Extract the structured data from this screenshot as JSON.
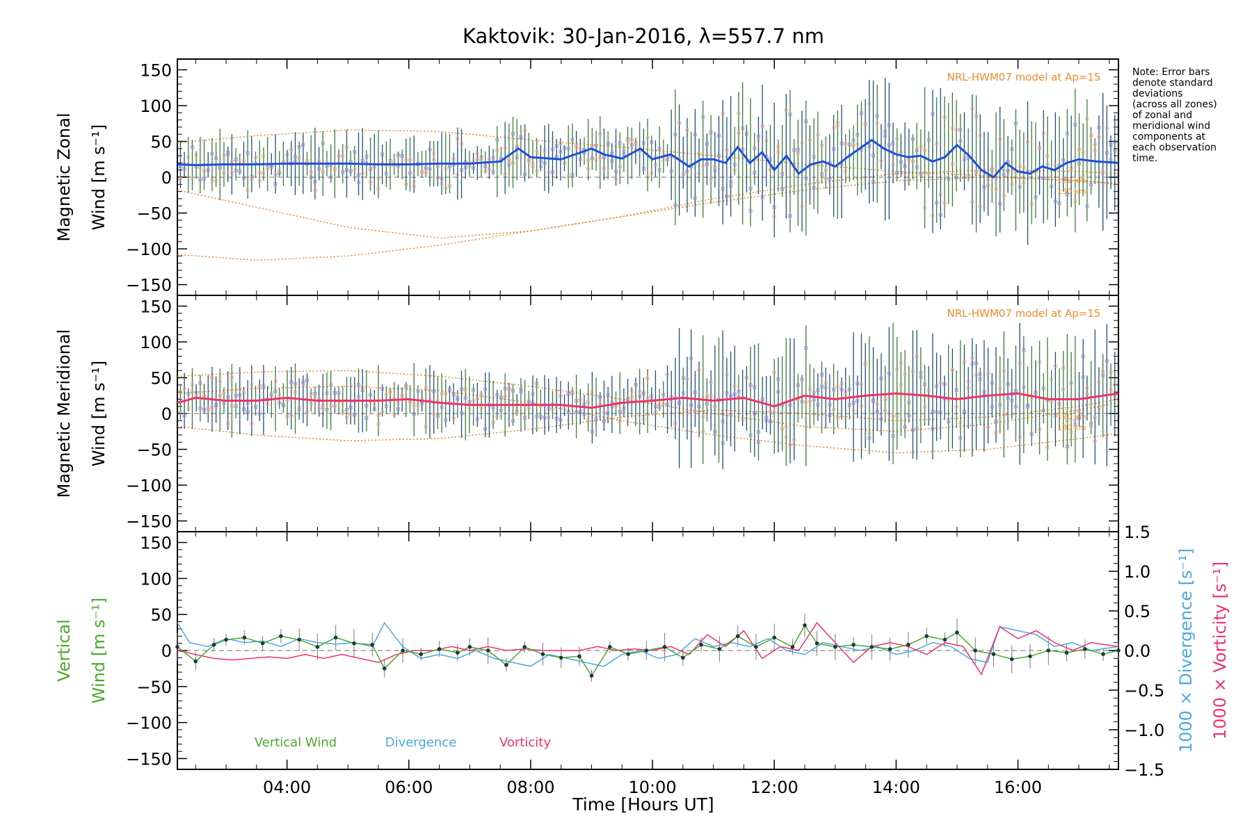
{
  "chart_data": [
    {
      "type": "line",
      "title": "Kaktovik: 30-Jan-2016, λ=557.7 nm",
      "ylabel": [
        "Magnetic Zonal",
        "Wind [m s⁻¹]"
      ],
      "ylim": [
        -165,
        165
      ],
      "xlim": [
        2.2,
        17.65
      ],
      "yticks": [
        "150",
        "100",
        "50",
        "0",
        "−50",
        "−100",
        "−150"
      ],
      "model_label": "NRL-HWM07 model at Ap=15",
      "model_curve_labels": [
        "120 km",
        "130 km"
      ],
      "series": [
        {
          "name": "",
          "color": "#1e4fd8",
          "x": [
            2.2,
            2.5,
            3.0,
            3.5,
            4.0,
            4.5,
            5.0,
            5.5,
            6.0,
            6.5,
            7.0,
            7.5,
            7.8,
            8.0,
            8.5,
            9.0,
            9.2,
            9.5,
            9.8,
            10.0,
            10.3,
            10.6,
            10.8,
            11.0,
            11.2,
            11.4,
            11.6,
            11.8,
            12.0,
            12.2,
            12.4,
            12.6,
            12.8,
            13.0,
            13.2,
            13.4,
            13.6,
            13.8,
            14.0,
            14.2,
            14.4,
            14.6,
            14.8,
            15.0,
            15.2,
            15.4,
            15.6,
            15.8,
            16.0,
            16.2,
            16.4,
            16.6,
            16.8,
            17.0,
            17.3,
            17.65
          ],
          "y": [
            18,
            17,
            18,
            18,
            19,
            19,
            19,
            18,
            18,
            19,
            19,
            22,
            40,
            28,
            25,
            40,
            32,
            26,
            40,
            25,
            32,
            15,
            25,
            25,
            20,
            42,
            20,
            35,
            10,
            30,
            5,
            18,
            22,
            15,
            28,
            40,
            52,
            40,
            32,
            28,
            30,
            22,
            28,
            45,
            30,
            10,
            0,
            20,
            8,
            5,
            15,
            10,
            20,
            25,
            22,
            20
          ]
        }
      ]
    },
    {
      "type": "line",
      "ylabel": [
        "Magnetic Meridional",
        "Wind [m s⁻¹]"
      ],
      "ylim": [
        -165,
        165
      ],
      "xlim": [
        2.2,
        17.65
      ],
      "yticks": [
        "150",
        "100",
        "50",
        "0",
        "−50",
        "−100",
        "−150"
      ],
      "model_label": "NRL-HWM07 model at Ap=15",
      "model_curve_labels": [
        "120 km",
        "130 km"
      ],
      "series": [
        {
          "name": "",
          "color": "#f0306a",
          "x": [
            2.2,
            2.5,
            3.0,
            3.5,
            4.0,
            4.5,
            5.0,
            5.5,
            6.0,
            6.5,
            7.0,
            7.5,
            8.0,
            8.5,
            9.0,
            9.5,
            10.0,
            10.5,
            11.0,
            11.5,
            12.0,
            12.5,
            13.0,
            13.5,
            14.0,
            14.5,
            15.0,
            15.5,
            16.0,
            16.5,
            17.0,
            17.65
          ],
          "y": [
            15,
            22,
            18,
            18,
            22,
            18,
            18,
            18,
            20,
            15,
            12,
            12,
            12,
            12,
            8,
            15,
            18,
            22,
            18,
            22,
            10,
            25,
            20,
            25,
            28,
            25,
            20,
            25,
            28,
            20,
            20,
            28
          ]
        }
      ]
    },
    {
      "type": "line",
      "ylabel": [
        "Vertical",
        "Wind [m s⁻¹]"
      ],
      "ylabel_right": [
        "1000 × Divergence [s⁻¹]",
        "1000 × Vorticity [s⁻¹]"
      ],
      "ylim": [
        -165,
        165
      ],
      "ylim_right": [
        -1.5,
        1.5
      ],
      "xlim": [
        2.2,
        17.65
      ],
      "yticks": [
        "150",
        "100",
        "50",
        "0",
        "−50",
        "−100",
        "−150"
      ],
      "yticks_right": [
        "1.5",
        "1.0",
        "0.5",
        "0.0",
        "−0.5",
        "−1.0",
        "−1.5"
      ],
      "xticks": [
        "04:00",
        "06:00",
        "08:00",
        "10:00",
        "12:00",
        "14:00",
        "16:00"
      ],
      "xlabel": "Time [Hours UT]",
      "legend": [
        "Vertical Wind",
        "Divergence",
        "Vorticity"
      ],
      "series": [
        {
          "name": "Vertical Wind",
          "color": "#4aa82c",
          "x": [
            2.2,
            2.5,
            2.8,
            3.0,
            3.3,
            3.6,
            3.9,
            4.2,
            4.5,
            4.8,
            5.1,
            5.4,
            5.6,
            5.9,
            6.2,
            6.5,
            6.8,
            7.0,
            7.3,
            7.6,
            7.9,
            8.2,
            8.5,
            8.8,
            9.0,
            9.3,
            9.6,
            9.9,
            10.2,
            10.5,
            10.8,
            11.1,
            11.4,
            11.7,
            12.0,
            12.3,
            12.5,
            12.7,
            13.0,
            13.3,
            13.6,
            13.9,
            14.2,
            14.5,
            14.8,
            15.0,
            15.3,
            15.6,
            15.9,
            16.2,
            16.5,
            16.8,
            17.1,
            17.4,
            17.65
          ],
          "y": [
            5,
            -15,
            8,
            15,
            18,
            10,
            20,
            15,
            5,
            18,
            10,
            8,
            -25,
            0,
            -5,
            2,
            -3,
            5,
            0,
            -20,
            5,
            -5,
            -10,
            -8,
            -35,
            5,
            -5,
            0,
            5,
            -10,
            8,
            2,
            20,
            5,
            18,
            5,
            35,
            10,
            5,
            8,
            5,
            2,
            8,
            20,
            15,
            25,
            0,
            -5,
            -12,
            -8,
            0,
            -3,
            2,
            -5,
            0
          ]
        },
        {
          "name": "Divergence",
          "color": "#4aa8e0",
          "x": [
            2.2,
            2.4,
            2.7,
            3.0,
            3.3,
            3.6,
            3.9,
            4.2,
            4.5,
            4.8,
            5.1,
            5.4,
            5.6,
            5.9,
            6.2,
            6.5,
            6.8,
            7.1,
            7.4,
            7.7,
            8.0,
            8.3,
            8.6,
            8.9,
            9.2,
            9.5,
            9.8,
            10.1,
            10.4,
            10.7,
            11.0,
            11.3,
            11.6,
            11.9,
            12.2,
            12.5,
            12.8,
            13.1,
            13.4,
            13.7,
            14.0,
            14.3,
            14.6,
            14.9,
            15.2,
            15.5,
            15.7,
            16.0,
            16.3,
            16.6,
            16.9,
            17.2,
            17.65
          ],
          "y": [
            0.35,
            0.1,
            0.05,
            0.15,
            0.1,
            0.12,
            0.05,
            0.15,
            0.1,
            0.08,
            0.1,
            0.05,
            0.35,
            0.05,
            -0.1,
            -0.05,
            -0.1,
            0.0,
            -0.1,
            -0.15,
            -0.2,
            -0.05,
            -0.1,
            -0.15,
            -0.2,
            -0.05,
            0.0,
            -0.1,
            -0.05,
            0.15,
            0.05,
            0.1,
            0.05,
            0.15,
            0.0,
            -0.05,
            0.1,
            0.05,
            0.0,
            0.05,
            -0.05,
            0.0,
            0.1,
            0.05,
            -0.1,
            -0.15,
            0.3,
            0.25,
            0.2,
            0.05,
            0.1,
            0.0,
            0.05
          ]
        },
        {
          "name": "Vorticity",
          "color": "#f0306a",
          "x": [
            2.2,
            2.5,
            2.8,
            3.1,
            3.4,
            3.7,
            4.0,
            4.3,
            4.6,
            4.9,
            5.2,
            5.5,
            5.8,
            6.1,
            6.4,
            6.7,
            7.0,
            7.3,
            7.6,
            7.9,
            8.2,
            8.5,
            8.8,
            9.1,
            9.4,
            9.7,
            10.0,
            10.3,
            10.6,
            10.9,
            11.2,
            11.5,
            11.8,
            12.1,
            12.4,
            12.7,
            13.0,
            13.3,
            13.6,
            13.9,
            14.2,
            14.5,
            14.8,
            15.1,
            15.4,
            15.7,
            16.0,
            16.3,
            16.6,
            16.9,
            17.2,
            17.65
          ],
          "y": [
            0.0,
            -0.05,
            -0.1,
            -0.12,
            -0.1,
            -0.08,
            -0.1,
            -0.05,
            -0.1,
            -0.05,
            -0.1,
            -0.15,
            -0.05,
            0.0,
            0.0,
            0.05,
            0.0,
            0.05,
            0.0,
            0.02,
            0.0,
            0.0,
            0.0,
            0.05,
            0.0,
            0.02,
            0.0,
            0.05,
            -0.05,
            0.2,
            0.05,
            0.25,
            -0.1,
            0.05,
            0.0,
            0.35,
            0.1,
            -0.15,
            0.05,
            0.1,
            0.05,
            -0.05,
            0.1,
            0.05,
            -0.3,
            0.3,
            0.15,
            0.25,
            0.1,
            0.0,
            0.1,
            0.05
          ]
        }
      ]
    }
  ],
  "note": [
    "Note: Error bars",
    "denote standard",
    "deviations",
    "(across all zones)",
    "of zonal and",
    "meridional wind",
    "components at",
    "each observation",
    "time."
  ]
}
